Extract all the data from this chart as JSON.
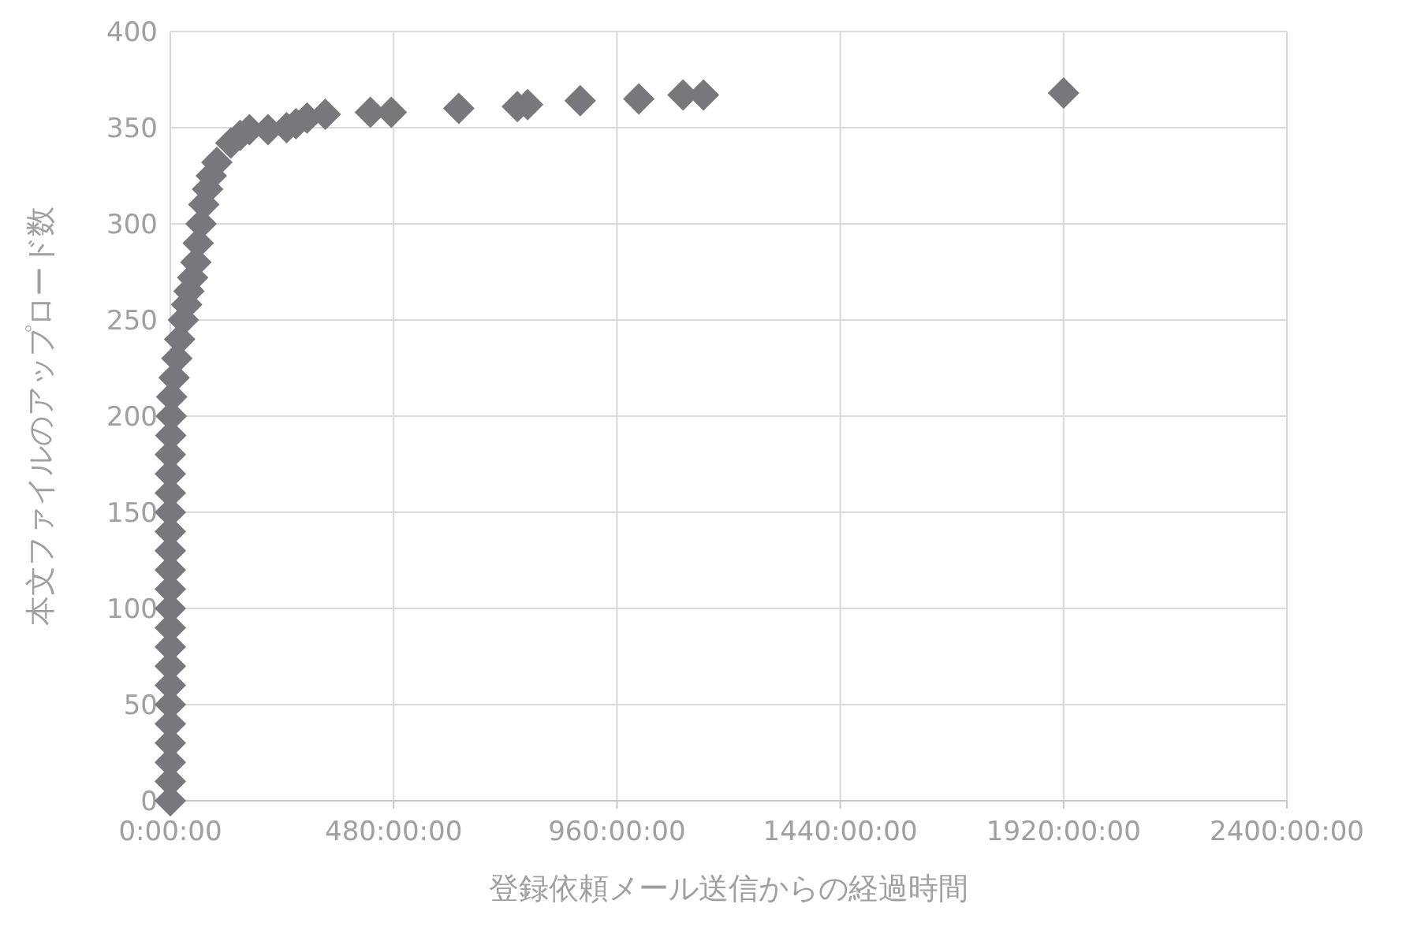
{
  "chart_data": {
    "type": "scatter",
    "xlabel": "登録依頼メール送信からの経過時間",
    "ylabel": "本文ファイルのアップロード数",
    "x": [
      0,
      0,
      0,
      0,
      0,
      0,
      0,
      0,
      0,
      0,
      0,
      0,
      0,
      0,
      0,
      0,
      0,
      0,
      0,
      1,
      2,
      3,
      8,
      14,
      20,
      28,
      35,
      40,
      48,
      55,
      60,
      66,
      72,
      80,
      88,
      100,
      130,
      150,
      170,
      210,
      250,
      270,
      294,
      333,
      430,
      475,
      620,
      746,
      768,
      881,
      1007,
      1102,
      1146,
      1920
    ],
    "series": [
      {
        "color": "#77787b",
        "values": [
          0,
          10,
          20,
          30,
          40,
          50,
          60,
          70,
          80,
          90,
          100,
          110,
          120,
          130,
          140,
          150,
          160,
          170,
          180,
          190,
          200,
          210,
          220,
          230,
          240,
          250,
          258,
          265,
          272,
          280,
          290,
          300,
          310,
          318,
          325,
          332,
          342,
          346,
          349,
          349,
          350,
          352,
          355,
          357,
          358,
          358,
          360,
          361,
          362,
          364,
          365,
          367,
          367,
          368
        ]
      }
    ],
    "xlim": [
      0,
      2400
    ],
    "ylim": [
      0,
      400
    ],
    "xticks": [
      {
        "value": 0,
        "label": "0:00:00"
      },
      {
        "value": 480,
        "label": "480:00:00"
      },
      {
        "value": 960,
        "label": "960:00:00"
      },
      {
        "value": 1440,
        "label": "1440:00:00"
      },
      {
        "value": 1920,
        "label": "1920:00:00"
      },
      {
        "value": 2400,
        "label": "2400:00:00"
      }
    ],
    "yticks": [
      0,
      50,
      100,
      150,
      200,
      250,
      300,
      350,
      400
    ],
    "grid": true,
    "marker": "diamond"
  }
}
